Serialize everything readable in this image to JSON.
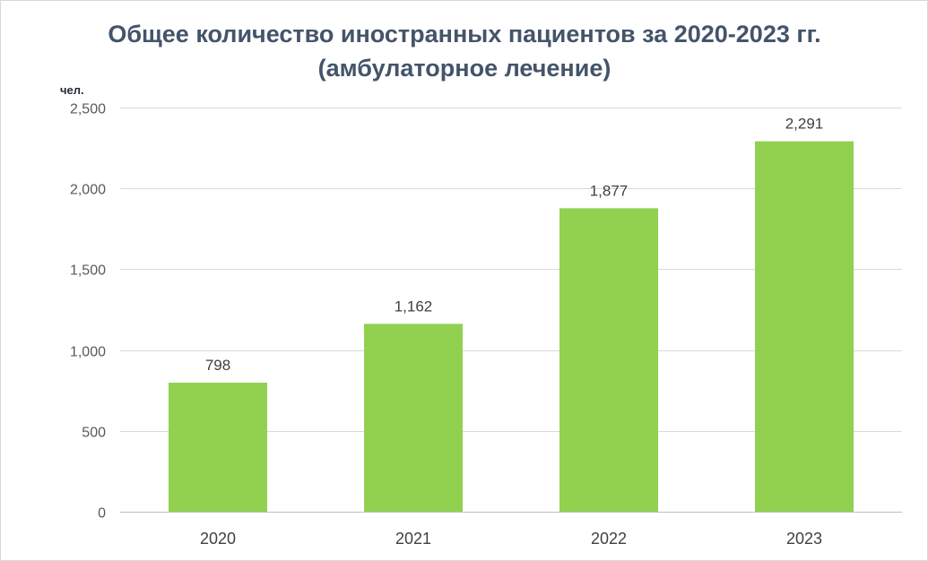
{
  "chart_data": {
    "type": "bar",
    "title_line1": "Общее количество иностранных пациентов за 2020-2023 гг.",
    "title_line2": "(амбулаторное лечение)",
    "ylabel": "чел.",
    "xlabel": "",
    "categories": [
      "2020",
      "2021",
      "2022",
      "2023"
    ],
    "values": [
      798,
      1162,
      1877,
      2291
    ],
    "value_labels": [
      "798",
      "1,162",
      "1,877",
      "2,291"
    ],
    "ylim": [
      0,
      2500
    ],
    "yticks": [
      0,
      500,
      1000,
      1500,
      2000,
      2500
    ],
    "ytick_labels": [
      "0",
      "500",
      "1,000",
      "1,500",
      "2,000",
      "2,500"
    ],
    "grid": true,
    "legend": "none",
    "bar_color": "#92d050",
    "grid_color": "#d9d9d9"
  }
}
